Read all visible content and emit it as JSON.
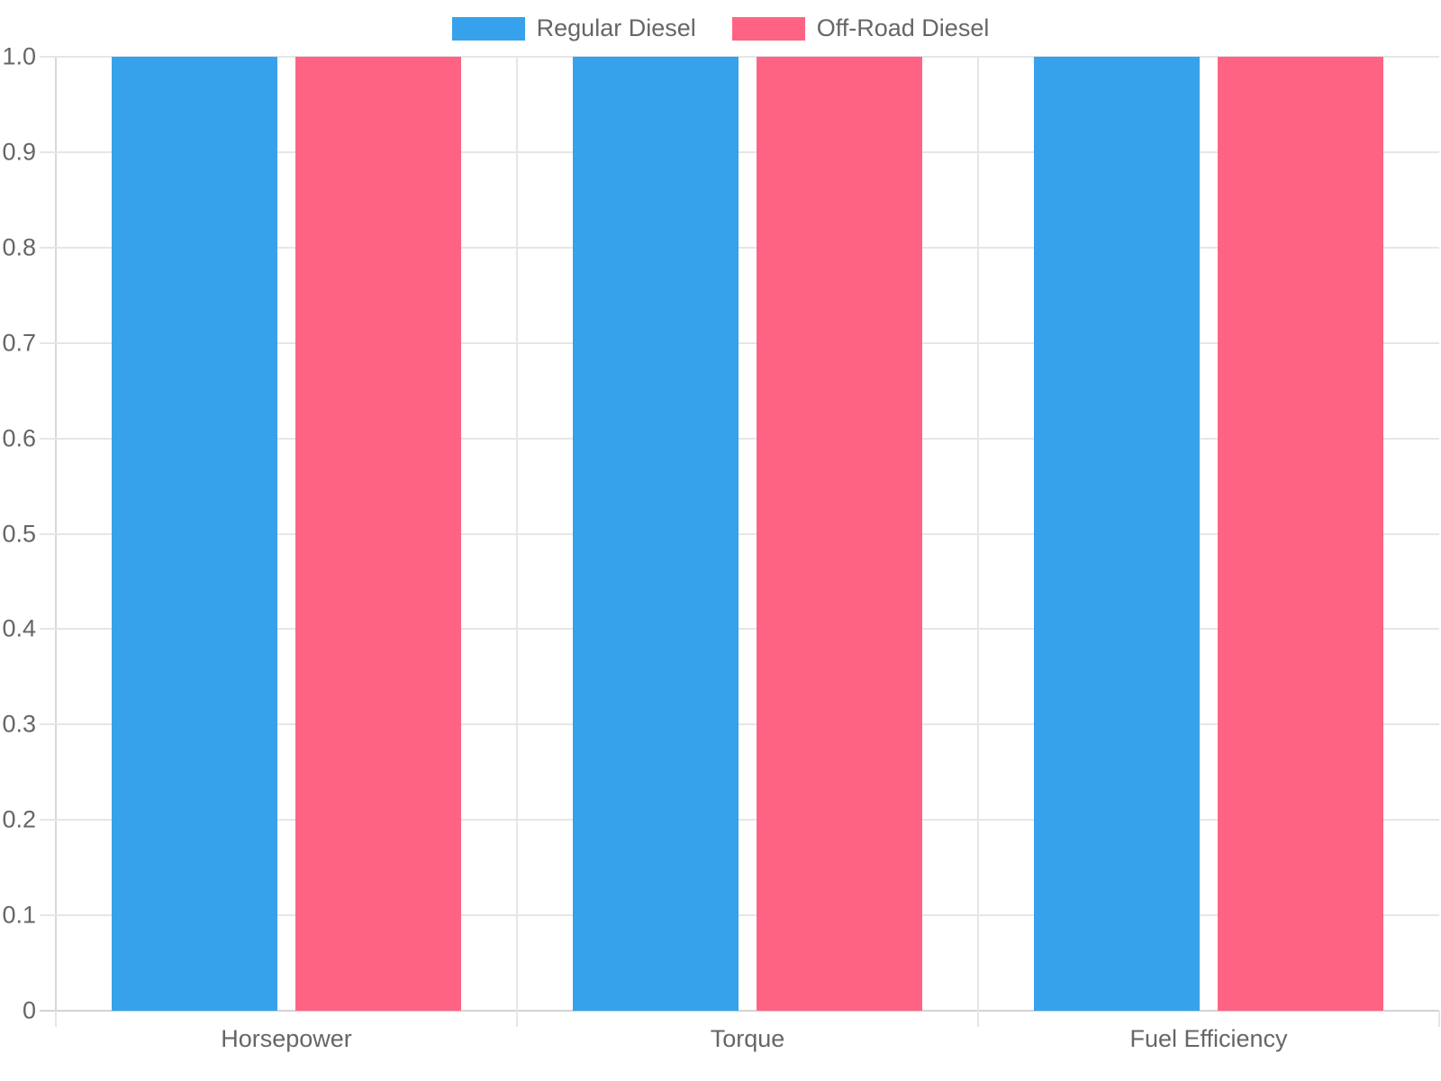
{
  "chart_data": {
    "type": "bar",
    "title": "",
    "categories": [
      "Horsepower",
      "Torque",
      "Fuel Efficiency"
    ],
    "series": [
      {
        "name": "Regular Diesel",
        "color": "#36A2EB",
        "values": [
          1.0,
          1.0,
          1.0
        ]
      },
      {
        "name": "Off-Road Diesel",
        "color": "#FF6384",
        "values": [
          1.0,
          1.0,
          1.0
        ]
      }
    ],
    "xlabel": "",
    "ylabel": "",
    "ylim": [
      0,
      1.0
    ],
    "ytick_step": 0.1,
    "yticks": [
      "1.0",
      "0.9",
      "0.8",
      "0.7",
      "0.6",
      "0.5",
      "0.4",
      "0.3",
      "0.2",
      "0.1",
      "0"
    ],
    "grid": "on",
    "legend_position": "top",
    "text_color": "#666666",
    "grid_color": "#e6e6e6"
  }
}
